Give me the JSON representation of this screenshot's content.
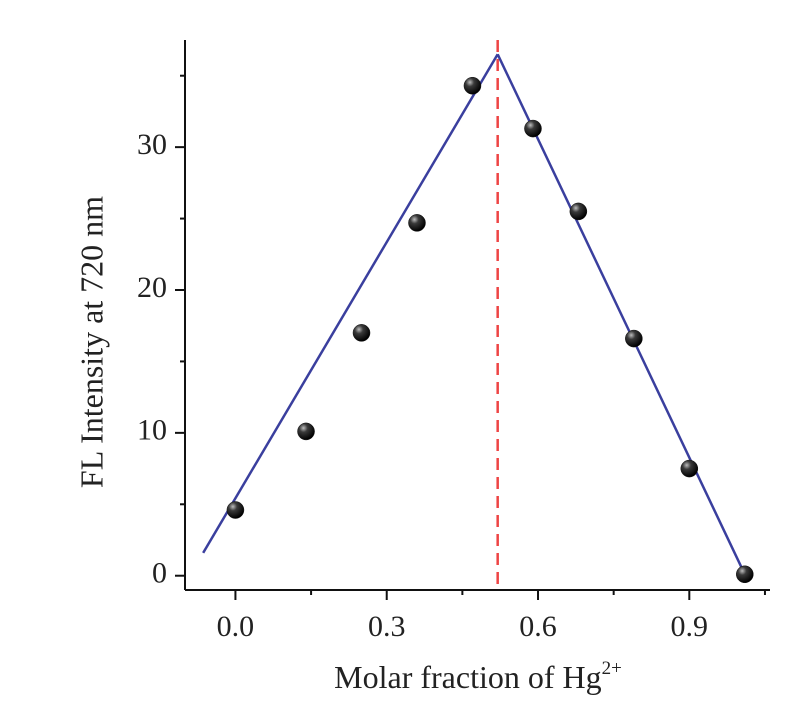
{
  "chart_data": {
    "type": "scatter",
    "xlabel": "Molar fraction of Hg",
    "xlabel_sup": "2+",
    "ylabel": "FL Intensity at 720 nm",
    "xlim": [
      -0.1,
      1.06
    ],
    "ylim": [
      -1.0,
      37.5
    ],
    "x_ticks": [
      0.0,
      0.3,
      0.6,
      0.9
    ],
    "x_tick_labels": [
      "0.0",
      "0.3",
      "0.6",
      "0.9"
    ],
    "y_ticks": [
      0,
      10,
      20,
      30
    ],
    "y_tick_labels": [
      "0",
      "10",
      "20",
      "30"
    ],
    "grid": false,
    "legend": false,
    "series": [
      {
        "x": [
          0.0,
          0.14,
          0.25,
          0.36,
          0.47,
          0.59,
          0.68,
          0.79,
          0.9,
          1.01
        ],
        "y": [
          4.6,
          10.1,
          17.0,
          24.7,
          34.3,
          31.3,
          25.5,
          16.6,
          7.5,
          0.1
        ]
      }
    ],
    "fit_lines": [
      {
        "x": [
          -0.064,
          0.52
        ],
        "y": [
          1.6,
          36.5
        ]
      },
      {
        "x": [
          0.52,
          1.01
        ],
        "y": [
          36.5,
          0.1
        ]
      }
    ],
    "vertical_line": {
      "x": 0.52
    },
    "colors": {
      "fit_line": "#3a3f9e",
      "vertical_line": "#ee4444",
      "marker": "#111111"
    }
  }
}
